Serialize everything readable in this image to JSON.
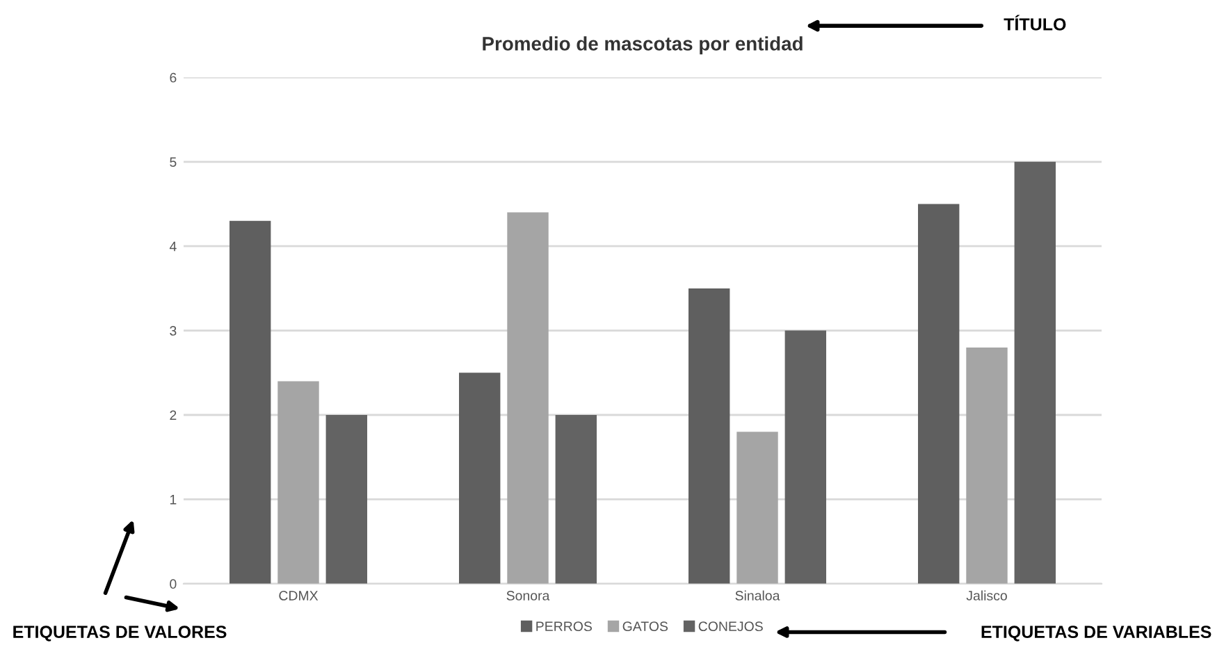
{
  "chart_data": {
    "type": "bar",
    "title": "Promedio de mascotas por entidad",
    "categories": [
      "CDMX",
      "Sonora",
      "Sinaloa",
      "Jalisco"
    ],
    "series": [
      {
        "name": "PERROS",
        "color": "#5f5f5f",
        "values": [
          4.3,
          2.5,
          3.5,
          4.5
        ]
      },
      {
        "name": "GATOS",
        "color": "#a5a5a5",
        "values": [
          2.4,
          4.4,
          1.8,
          2.8
        ]
      },
      {
        "name": "CONEJOS",
        "color": "#636363",
        "values": [
          2,
          2,
          3,
          5
        ]
      }
    ],
    "ylim": [
      0,
      6
    ],
    "yticks": [
      0,
      1,
      2,
      3,
      4,
      5,
      6
    ],
    "grid": "y",
    "legend": "bottom",
    "annotations": [
      "TÍTULO",
      "ETIQUETAS DE VALORES",
      "ETIQUETAS DE VARIABLES"
    ]
  }
}
